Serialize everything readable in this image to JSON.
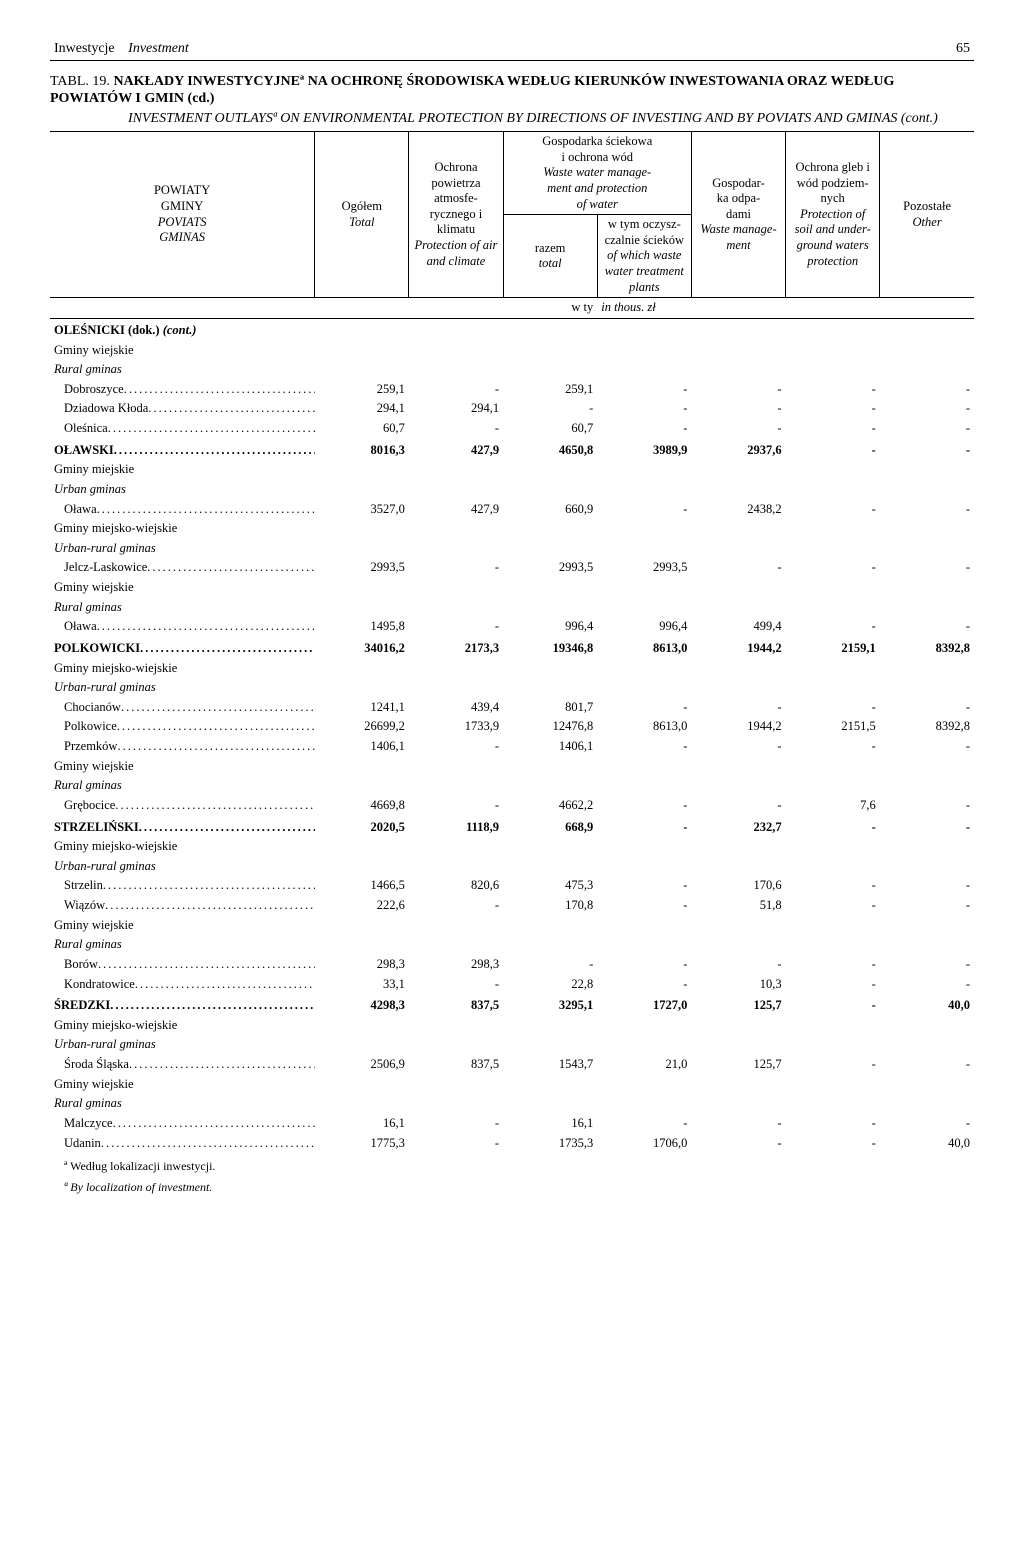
{
  "header": {
    "left_normal": "Inwestycje",
    "left_italic": "Investment",
    "page": "65"
  },
  "title": {
    "label": "TABL. 19.",
    "main": "NAKŁADY INWESTYCYJNEª NA OCHRONĘ ŚRODOWISKA WEDŁUG KIERUNKÓW INWESTOWANIA ORAZ WEDŁUG POWIATÓW I GMIN (cd.)",
    "sub": "INVESTMENT OUTLAYSª ON ENVIRONMENTAL PROTECTION BY DIRECTIONS OF INVESTING AND BY POVIATS AND GMINAS (cont.)"
  },
  "cols": {
    "c0": "POWIATY\nGMINY\nPOVIATS\nGMINAS",
    "c1": "Ogółem\nTotal",
    "c2": "Ochrona powietrza atmosfe­rycznego i klimatu\nProtection of air and climate",
    "waste_top": "Gospodarka ściekowa i ochrona wód\nWaste water manage­ment and protection of water",
    "c3": "razem\ntotal",
    "c4": "w tym oczysz­czalnie ścieków\nof which waste water treatment plants",
    "c5": "Gospodar­ka odpa­dami\nWaste manage­ment",
    "c6": "Ochrona gleb i wód podziem­nych\nProtection of soil and under­ground waters protection",
    "c7": "Pozostałe\nOther",
    "unit_left": "w ty",
    "unit_right": "in thous. zł"
  },
  "rows": [
    {
      "t": "h",
      "lbl": "OLEŚNICKI (dok.) <span class='i'>(cont.)</span>"
    },
    {
      "t": "g",
      "lbl": "Gminy wiejskie"
    },
    {
      "t": "gi",
      "lbl": "Rural gminas"
    },
    {
      "t": "d",
      "lbl": "Dobroszyce",
      "v": [
        "259,1",
        "-",
        "259,1",
        "-",
        "-",
        "-",
        "-"
      ]
    },
    {
      "t": "d",
      "lbl": "Dziadowa Kłoda",
      "v": [
        "294,1",
        "294,1",
        "-",
        "-",
        "-",
        "-",
        "-"
      ]
    },
    {
      "t": "d",
      "lbl": "Oleśnica",
      "v": [
        "60,7",
        "-",
        "60,7",
        "-",
        "-",
        "-",
        "-"
      ]
    },
    {
      "t": "hb",
      "lbl": "OŁAWSKI",
      "v": [
        "8016,3",
        "427,9",
        "4650,8",
        "3989,9",
        "2937,6",
        "-",
        "-"
      ]
    },
    {
      "t": "g",
      "lbl": "Gminy miejskie"
    },
    {
      "t": "gi",
      "lbl": "Urban gminas"
    },
    {
      "t": "d",
      "lbl": "Oława",
      "v": [
        "3527,0",
        "427,9",
        "660,9",
        "-",
        "2438,2",
        "-",
        "-"
      ]
    },
    {
      "t": "g",
      "lbl": "Gminy miejsko-wiejskie"
    },
    {
      "t": "gi",
      "lbl": "Urban-rural gminas"
    },
    {
      "t": "d",
      "lbl": "Jelcz-Laskowice",
      "v": [
        "2993,5",
        "-",
        "2993,5",
        "2993,5",
        "-",
        "-",
        "-"
      ]
    },
    {
      "t": "g",
      "lbl": "Gminy wiejskie"
    },
    {
      "t": "gi",
      "lbl": "Rural gminas"
    },
    {
      "t": "d",
      "lbl": "Oława",
      "v": [
        "1495,8",
        "-",
        "996,4",
        "996,4",
        "499,4",
        "-",
        "-"
      ]
    },
    {
      "t": "hb",
      "lbl": "POLKOWICKI",
      "v": [
        "34016,2",
        "2173,3",
        "19346,8",
        "8613,0",
        "1944,2",
        "2159,1",
        "8392,8"
      ]
    },
    {
      "t": "g",
      "lbl": "Gminy miejsko-wiejskie"
    },
    {
      "t": "gi",
      "lbl": "Urban-rural gminas"
    },
    {
      "t": "d",
      "lbl": "Chocianów",
      "v": [
        "1241,1",
        "439,4",
        "801,7",
        "-",
        "-",
        "-",
        "-"
      ]
    },
    {
      "t": "d",
      "lbl": "Polkowice",
      "v": [
        "26699,2",
        "1733,9",
        "12476,8",
        "8613,0",
        "1944,2",
        "2151,5",
        "8392,8"
      ]
    },
    {
      "t": "d",
      "lbl": "Przemków",
      "v": [
        "1406,1",
        "-",
        "1406,1",
        "-",
        "-",
        "-",
        "-"
      ]
    },
    {
      "t": "g",
      "lbl": "Gminy wiejskie"
    },
    {
      "t": "gi",
      "lbl": "Rural gminas"
    },
    {
      "t": "d",
      "lbl": "Grębocice",
      "v": [
        "4669,8",
        "-",
        "4662,2",
        "-",
        "-",
        "7,6",
        "-"
      ]
    },
    {
      "t": "hb",
      "lbl": "STRZELIŃSKI",
      "v": [
        "2020,5",
        "1118,9",
        "668,9",
        "-",
        "232,7",
        "-",
        "-"
      ]
    },
    {
      "t": "g",
      "lbl": "Gminy miejsko-wiejskie"
    },
    {
      "t": "gi",
      "lbl": "Urban-rural gminas"
    },
    {
      "t": "d",
      "lbl": "Strzelin",
      "v": [
        "1466,5",
        "820,6",
        "475,3",
        "-",
        "170,6",
        "-",
        "-"
      ]
    },
    {
      "t": "d",
      "lbl": "Wiązów",
      "v": [
        "222,6",
        "-",
        "170,8",
        "-",
        "51,8",
        "-",
        "-"
      ]
    },
    {
      "t": "g",
      "lbl": "Gminy wiejskie"
    },
    {
      "t": "gi",
      "lbl": "Rural gminas"
    },
    {
      "t": "d",
      "lbl": "Borów",
      "v": [
        "298,3",
        "298,3",
        "-",
        "-",
        "-",
        "-",
        "-"
      ]
    },
    {
      "t": "d",
      "lbl": "Kondratowice",
      "v": [
        "33,1",
        "-",
        "22,8",
        "-",
        "10,3",
        "-",
        "-"
      ]
    },
    {
      "t": "hb",
      "lbl": "ŚREDZKI",
      "v": [
        "4298,3",
        "837,5",
        "3295,1",
        "1727,0",
        "125,7",
        "-",
        "40,0"
      ]
    },
    {
      "t": "g",
      "lbl": "Gminy miejsko-wiejskie"
    },
    {
      "t": "gi",
      "lbl": "Urban-rural gminas"
    },
    {
      "t": "d",
      "lbl": "Środa Śląska",
      "v": [
        "2506,9",
        "837,5",
        "1543,7",
        "21,0",
        "125,7",
        "-",
        "-"
      ]
    },
    {
      "t": "g",
      "lbl": "Gminy wiejskie"
    },
    {
      "t": "gi",
      "lbl": "Rural gminas"
    },
    {
      "t": "d",
      "lbl": "Malczyce",
      "v": [
        "16,1",
        "-",
        "16,1",
        "-",
        "-",
        "-",
        "-"
      ]
    },
    {
      "t": "d",
      "lbl": "Udanin",
      "v": [
        "1775,3",
        "-",
        "1735,3",
        "1706,0",
        "-",
        "-",
        "40,0"
      ]
    }
  ],
  "footnotes": {
    "a": "ª Według lokalizacji inwestycji.",
    "b": "ª By localization of investment."
  }
}
